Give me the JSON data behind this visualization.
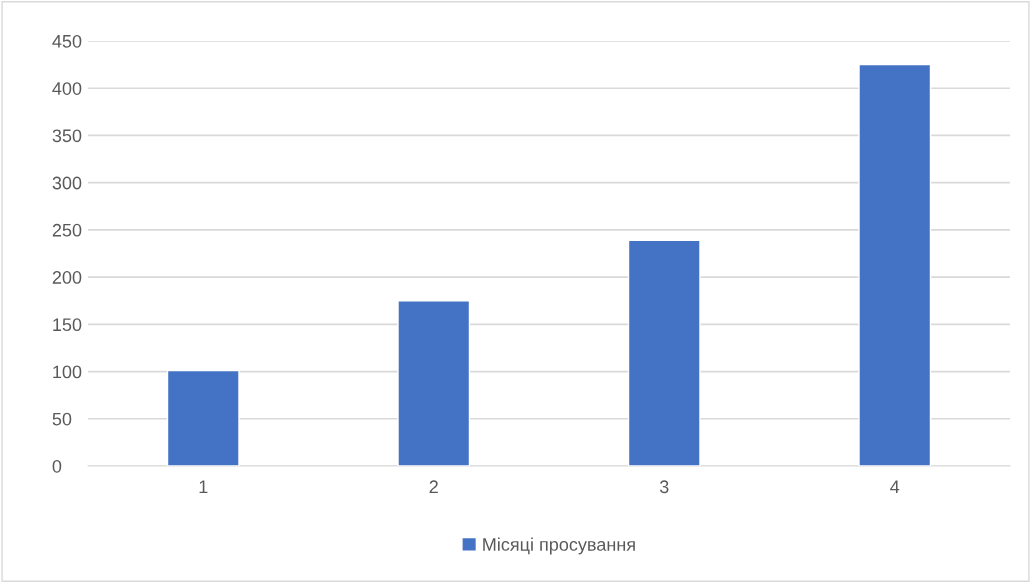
{
  "chart_data": {
    "type": "bar",
    "categories": [
      "1",
      "2",
      "3",
      "4"
    ],
    "series": [
      {
        "name": "Місяці просування",
        "color": "#4472c4",
        "values": [
          101,
          175,
          239,
          425
        ]
      }
    ],
    "ylim": [
      0,
      450
    ],
    "yticks": [
      0,
      50,
      100,
      150,
      200,
      250,
      300,
      350,
      400,
      450
    ],
    "grid": "y",
    "legend": "bottom"
  }
}
